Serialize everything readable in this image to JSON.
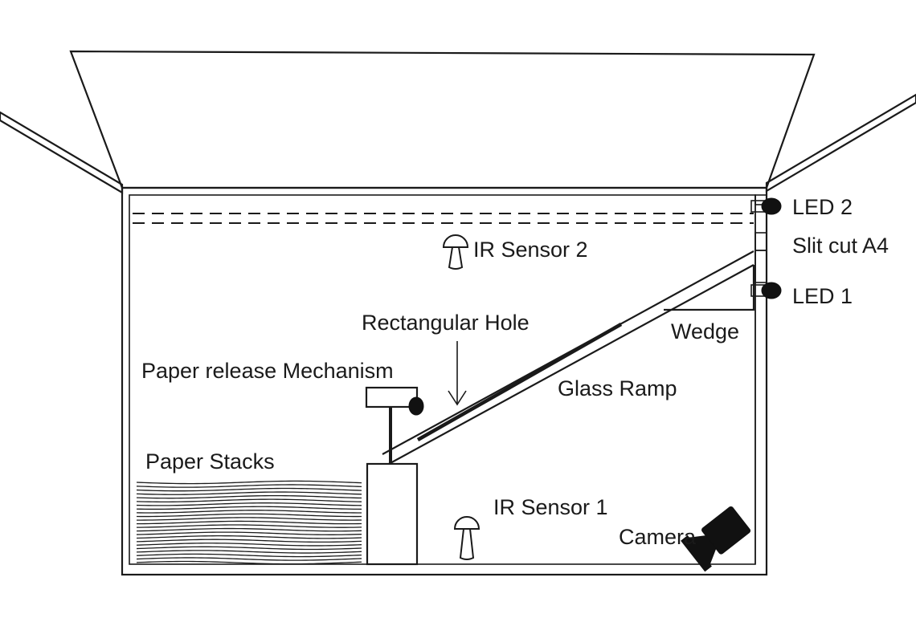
{
  "diagram": {
    "labels": {
      "led2": "LED 2",
      "slit": "Slit cut A4",
      "led1": "LED 1",
      "ir_sensor_2": "IR Sensor 2",
      "rectangular_hole": "Rectangular Hole",
      "wedge": "Wedge",
      "paper_release": "Paper release Mechanism",
      "glass_ramp": "Glass Ramp",
      "paper_stacks": "Paper Stacks",
      "ir_sensor_1": "IR Sensor 1",
      "camera": "Camera"
    },
    "icons": {
      "ir_sensor": "ir-sensor-icon",
      "led": "led-icon",
      "camera": "camera-icon"
    },
    "colors": {
      "line": "#1a1a1a",
      "background": "#ffffff"
    }
  }
}
